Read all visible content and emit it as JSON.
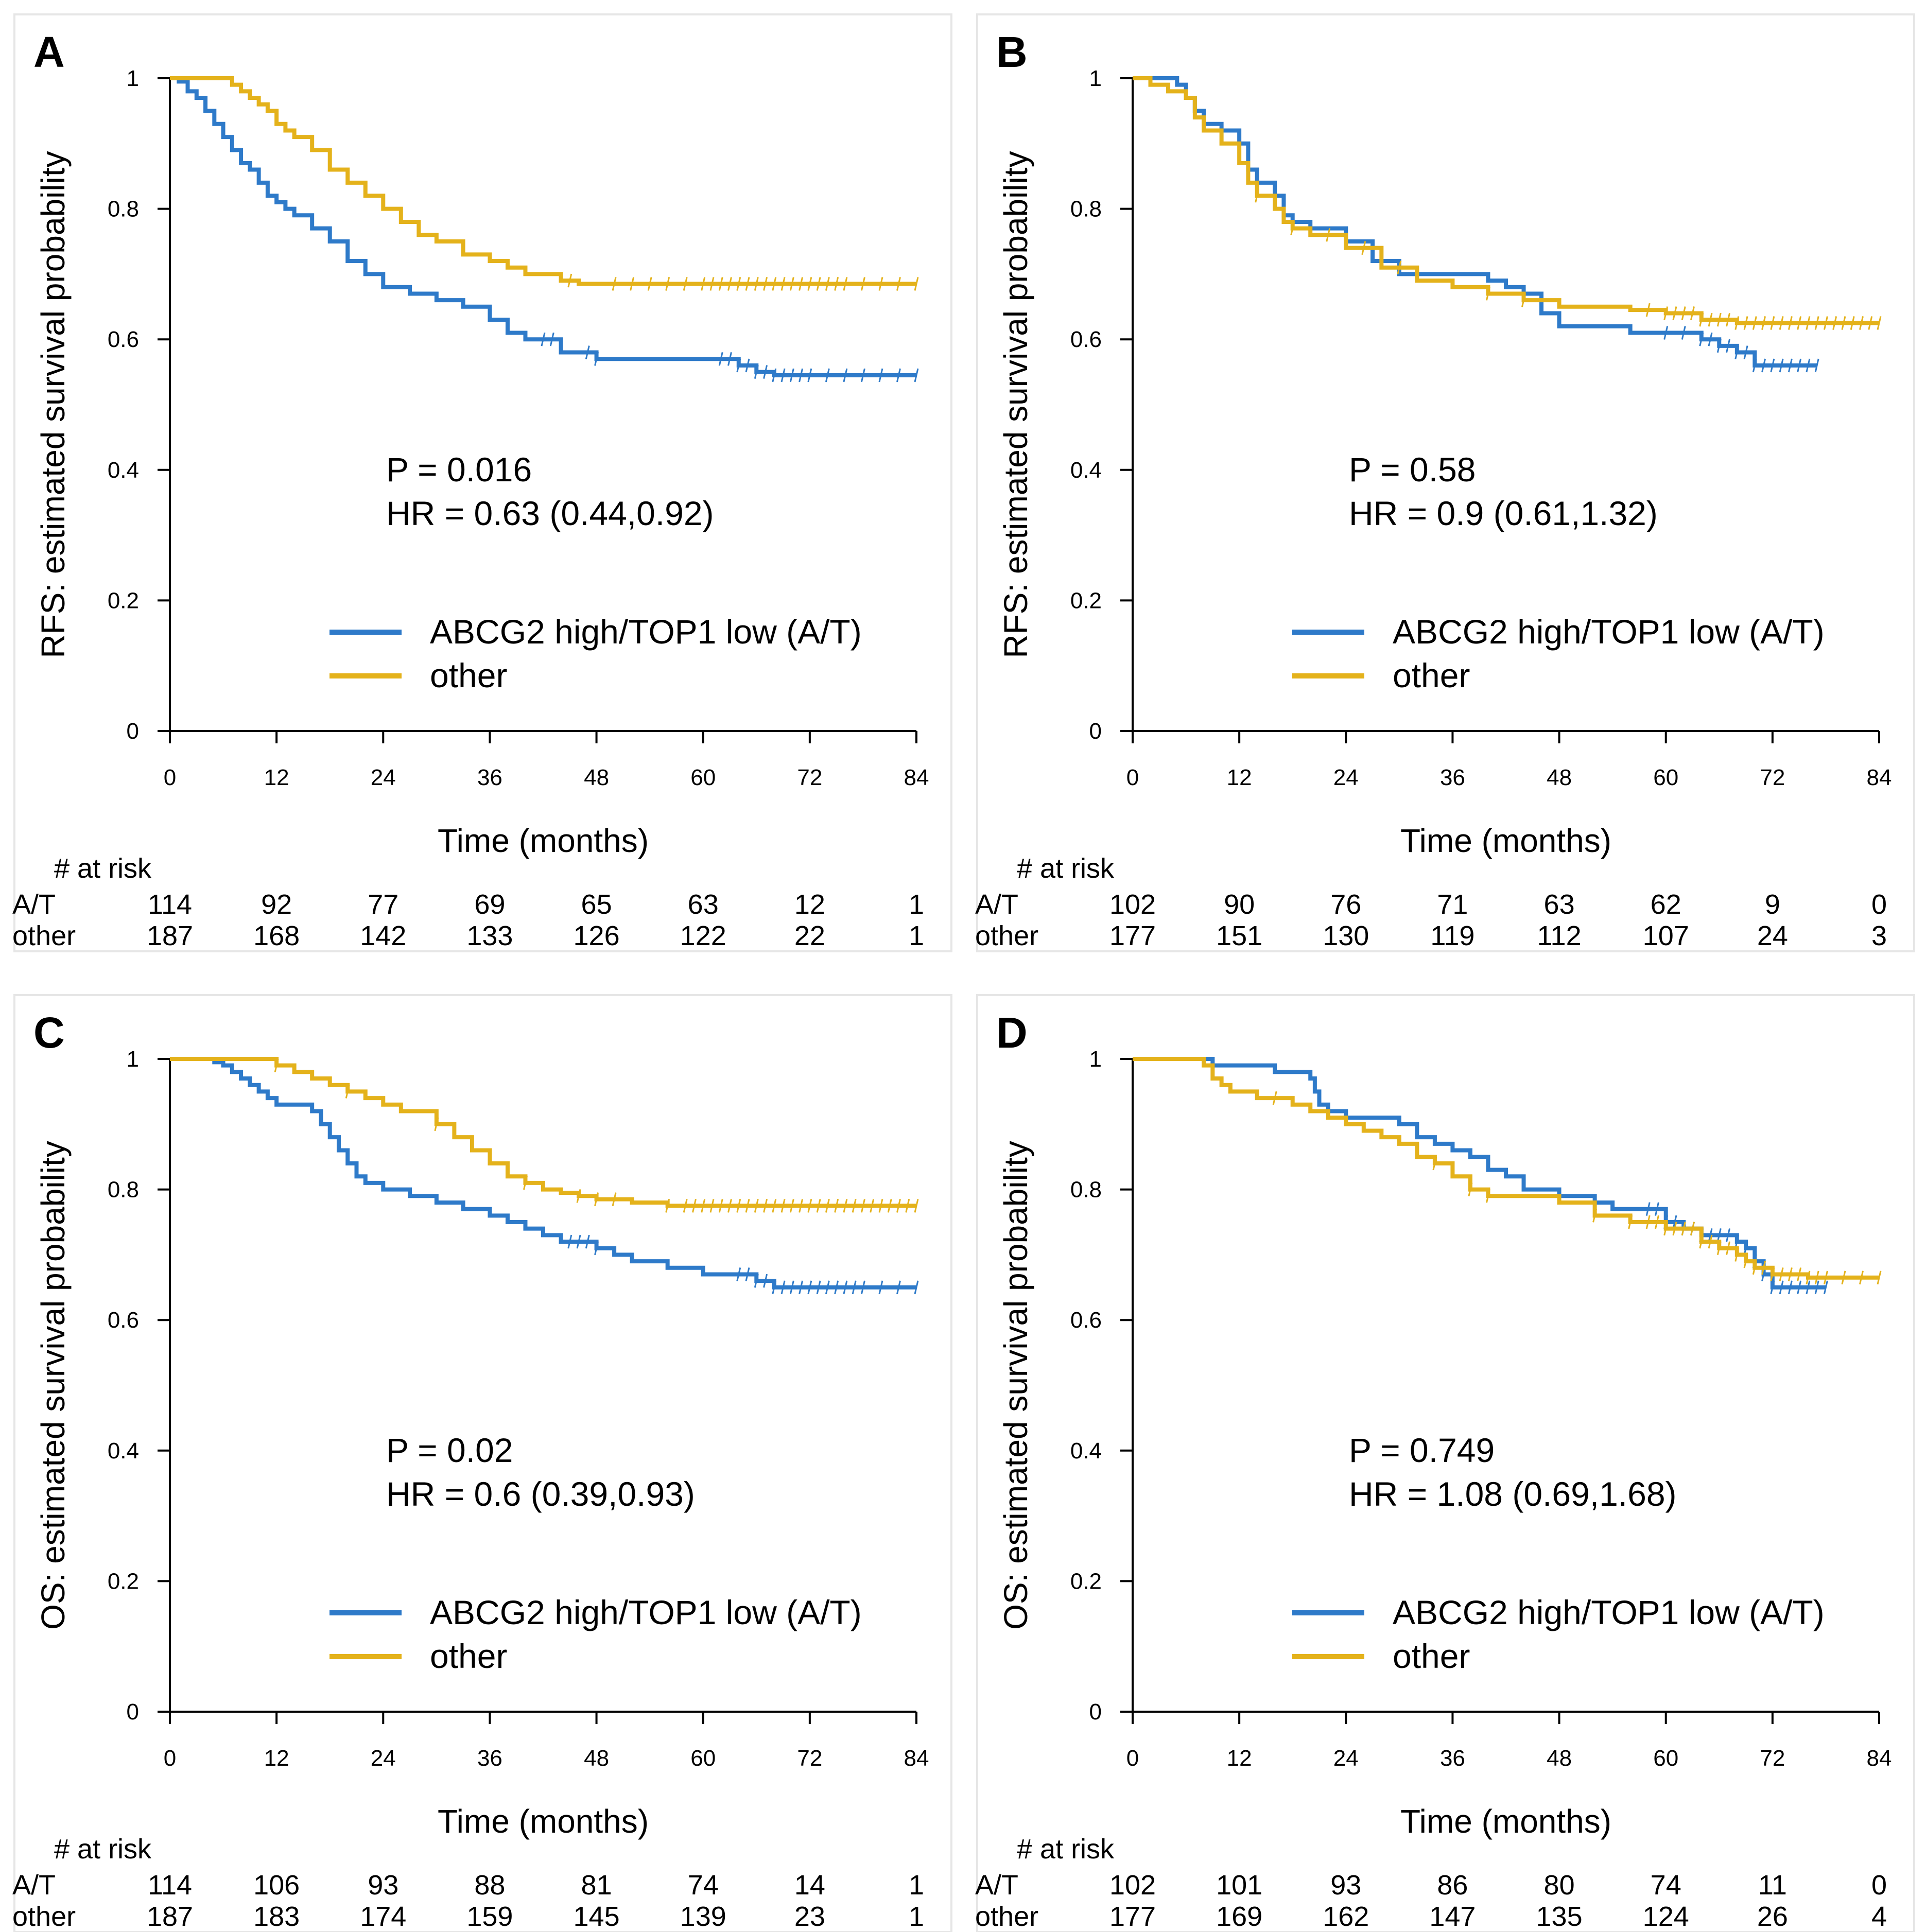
{
  "colors": {
    "at": "#2e7ac9",
    "other": "#e4b21b"
  },
  "chart_data": [
    {
      "id": "A",
      "type": "line",
      "panel_label": "A",
      "ylabel": "RFS: estimated survival probability",
      "xlabel": "Time (months)",
      "xlim": [
        0,
        84
      ],
      "ylim": [
        0,
        1
      ],
      "x_ticks": [
        "0",
        "12",
        "24",
        "36",
        "48",
        "60",
        "72",
        "84"
      ],
      "y_ticks": [
        "0",
        "0.2",
        "0.4",
        "0.6",
        "0.8",
        "1"
      ],
      "p_text": "P = 0.016",
      "hr_text": "HR = 0.63  (0.44,0.92)",
      "legend": {
        "at": "ABCG2 high/TOP1 low (A/T)",
        "other": "other"
      },
      "risk": {
        "header": "# at risk",
        "at_label": "A/T",
        "other_label": "other",
        "at": [
          "114",
          "92",
          "77",
          "69",
          "65",
          "63",
          "12",
          "1"
        ],
        "other": [
          "187",
          "168",
          "142",
          "133",
          "126",
          "122",
          "22",
          "1"
        ]
      },
      "series": [
        {
          "name": "at",
          "x": [
            0,
            1,
            2,
            3,
            4,
            5,
            6,
            7,
            8,
            9,
            10,
            11,
            12,
            13,
            14,
            16,
            18,
            20,
            22,
            24,
            27,
            30,
            33,
            36,
            38,
            40,
            44,
            48,
            52,
            56,
            60,
            64,
            66,
            68,
            72,
            76,
            80,
            84
          ],
          "y": [
            1,
            0.995,
            0.98,
            0.97,
            0.95,
            0.93,
            0.91,
            0.89,
            0.87,
            0.86,
            0.84,
            0.82,
            0.81,
            0.8,
            0.79,
            0.77,
            0.75,
            0.72,
            0.7,
            0.68,
            0.67,
            0.66,
            0.65,
            0.63,
            0.61,
            0.6,
            0.58,
            0.57,
            0.57,
            0.57,
            0.57,
            0.56,
            0.55,
            0.545,
            0.545,
            0.545,
            0.545,
            0.545
          ],
          "censor_x": [
            42,
            43,
            47,
            48,
            62,
            63,
            64,
            65,
            66,
            67,
            68,
            69,
            70,
            71,
            72,
            74,
            76,
            78,
            80,
            82,
            84
          ]
        },
        {
          "name": "other",
          "x": [
            0,
            2,
            4,
            6,
            7,
            8,
            9,
            10,
            11,
            12,
            13,
            14,
            16,
            18,
            20,
            22,
            24,
            26,
            28,
            30,
            33,
            36,
            38,
            40,
            44,
            46,
            48,
            52,
            56,
            60,
            64,
            68,
            72,
            76,
            80,
            84
          ],
          "y": [
            1,
            1,
            1,
            1,
            0.99,
            0.98,
            0.97,
            0.96,
            0.95,
            0.93,
            0.92,
            0.91,
            0.89,
            0.86,
            0.84,
            0.82,
            0.8,
            0.78,
            0.76,
            0.75,
            0.73,
            0.72,
            0.71,
            0.7,
            0.69,
            0.685,
            0.685,
            0.685,
            0.685,
            0.685,
            0.685,
            0.685,
            0.685,
            0.685,
            0.685,
            0.685
          ],
          "censor_x": [
            45,
            50,
            52,
            54,
            56,
            58,
            60,
            61,
            62,
            63,
            64,
            65,
            66,
            67,
            68,
            69,
            70,
            71,
            72,
            73,
            74,
            75,
            76,
            78,
            80,
            82,
            84
          ]
        }
      ]
    },
    {
      "id": "B",
      "type": "line",
      "panel_label": "B",
      "ylabel": "RFS: estimated survival probability",
      "xlabel": "Time (months)",
      "xlim": [
        0,
        84
      ],
      "ylim": [
        0,
        1
      ],
      "x_ticks": [
        "0",
        "12",
        "24",
        "36",
        "48",
        "60",
        "72",
        "84"
      ],
      "y_ticks": [
        "0",
        "0.2",
        "0.4",
        "0.6",
        "0.8",
        "1"
      ],
      "p_text": "P = 0.58",
      "hr_text": "HR = 0.9  (0.61,1.32)",
      "legend": {
        "at": "ABCG2 high/TOP1 low (A/T)",
        "other": "other"
      },
      "risk": {
        "header": "# at risk",
        "at_label": "A/T",
        "other_label": "other",
        "at": [
          "102",
          "90",
          "76",
          "71",
          "63",
          "62",
          "9",
          "0"
        ],
        "other": [
          "177",
          "151",
          "130",
          "119",
          "112",
          "107",
          "24",
          "3"
        ]
      },
      "series": [
        {
          "name": "at",
          "x": [
            0,
            3,
            5,
            6,
            7,
            8,
            10,
            12,
            13,
            14,
            16,
            17,
            18,
            20,
            24,
            27,
            30,
            34,
            36,
            40,
            42,
            44,
            46,
            48,
            52,
            56,
            60,
            64,
            66,
            68,
            70,
            72,
            74,
            77
          ],
          "y": [
            1,
            1,
            0.99,
            0.97,
            0.95,
            0.93,
            0.92,
            0.9,
            0.86,
            0.84,
            0.82,
            0.79,
            0.78,
            0.77,
            0.75,
            0.72,
            0.7,
            0.7,
            0.7,
            0.69,
            0.68,
            0.67,
            0.64,
            0.62,
            0.62,
            0.61,
            0.61,
            0.6,
            0.59,
            0.58,
            0.56,
            0.56,
            0.56,
            0.56
          ],
          "censor_x": [
            60,
            62,
            64,
            65,
            66,
            67,
            68,
            69,
            70,
            71,
            72,
            73,
            74,
            75,
            76,
            77
          ]
        },
        {
          "name": "other",
          "x": [
            0,
            2,
            4,
            6,
            7,
            8,
            10,
            12,
            13,
            14,
            16,
            17,
            18,
            20,
            24,
            28,
            32,
            36,
            40,
            44,
            48,
            52,
            56,
            60,
            64,
            68,
            72,
            76,
            80,
            84
          ],
          "y": [
            1,
            0.99,
            0.98,
            0.97,
            0.94,
            0.92,
            0.9,
            0.87,
            0.84,
            0.82,
            0.8,
            0.78,
            0.77,
            0.76,
            0.74,
            0.71,
            0.69,
            0.68,
            0.67,
            0.66,
            0.65,
            0.65,
            0.645,
            0.64,
            0.63,
            0.625,
            0.625,
            0.625,
            0.625,
            0.625
          ],
          "censor_x": [
            14,
            18,
            22,
            26,
            30,
            40,
            44,
            58,
            60,
            61,
            62,
            63,
            64,
            65,
            66,
            67,
            68,
            69,
            70,
            71,
            72,
            73,
            74,
            75,
            76,
            77,
            78,
            79,
            80,
            81,
            82,
            83,
            84
          ]
        }
      ]
    },
    {
      "id": "C",
      "type": "line",
      "panel_label": "C",
      "ylabel": "OS: estimated survival probability",
      "xlabel": "Time (months)",
      "xlim": [
        0,
        84
      ],
      "ylim": [
        0,
        1
      ],
      "x_ticks": [
        "0",
        "12",
        "24",
        "36",
        "48",
        "60",
        "72",
        "84"
      ],
      "y_ticks": [
        "0",
        "0.2",
        "0.4",
        "0.6",
        "0.8",
        "1"
      ],
      "p_text": "P = 0.02",
      "hr_text": "HR = 0.6  (0.39,0.93)",
      "legend": {
        "at": "ABCG2 high/TOP1 low (A/T)",
        "other": "other"
      },
      "risk": {
        "header": "# at risk",
        "at_label": "A/T",
        "other_label": "other",
        "at": [
          "114",
          "106",
          "93",
          "88",
          "81",
          "74",
          "14",
          "1"
        ],
        "other": [
          "187",
          "183",
          "174",
          "159",
          "145",
          "139",
          "23",
          "1"
        ]
      },
      "series": [
        {
          "name": "at",
          "x": [
            0,
            2,
            4,
            5,
            6,
            7,
            8,
            9,
            10,
            11,
            12,
            14,
            16,
            17,
            18,
            19,
            20,
            21,
            22,
            24,
            27,
            30,
            33,
            36,
            38,
            40,
            42,
            44,
            48,
            50,
            52,
            56,
            60,
            64,
            66,
            68,
            72,
            76,
            80,
            84
          ],
          "y": [
            1,
            1,
            1,
            0.995,
            0.99,
            0.98,
            0.97,
            0.96,
            0.95,
            0.94,
            0.93,
            0.93,
            0.92,
            0.9,
            0.88,
            0.86,
            0.84,
            0.82,
            0.81,
            0.8,
            0.79,
            0.78,
            0.77,
            0.76,
            0.75,
            0.74,
            0.73,
            0.72,
            0.71,
            0.7,
            0.69,
            0.68,
            0.67,
            0.67,
            0.66,
            0.65,
            0.65,
            0.65,
            0.65,
            0.65
          ],
          "censor_x": [
            45,
            46,
            47,
            48,
            64,
            65,
            66,
            67,
            68,
            69,
            70,
            71,
            72,
            73,
            74,
            75,
            76,
            77,
            78,
            80,
            82,
            84
          ]
        },
        {
          "name": "other",
          "x": [
            0,
            6,
            10,
            12,
            14,
            16,
            18,
            20,
            22,
            24,
            26,
            28,
            30,
            32,
            34,
            36,
            38,
            40,
            42,
            44,
            46,
            48,
            52,
            56,
            60,
            64,
            68,
            72,
            76,
            80,
            84
          ],
          "y": [
            1,
            1,
            1,
            0.99,
            0.98,
            0.97,
            0.96,
            0.95,
            0.94,
            0.93,
            0.92,
            0.92,
            0.9,
            0.88,
            0.86,
            0.84,
            0.82,
            0.81,
            0.8,
            0.795,
            0.79,
            0.785,
            0.78,
            0.775,
            0.775,
            0.775,
            0.775,
            0.775,
            0.775,
            0.775,
            0.775
          ],
          "censor_x": [
            12,
            20,
            30,
            40,
            46,
            48,
            50,
            56,
            58,
            59,
            60,
            61,
            62,
            63,
            64,
            65,
            66,
            67,
            68,
            69,
            70,
            71,
            72,
            73,
            74,
            75,
            76,
            77,
            78,
            79,
            80,
            81,
            82,
            83,
            84
          ]
        }
      ]
    },
    {
      "id": "D",
      "type": "line",
      "panel_label": "D",
      "ylabel": "OS: estimated survival probability",
      "xlabel": "Time (months)",
      "xlim": [
        0,
        84
      ],
      "ylim": [
        0,
        1
      ],
      "x_ticks": [
        "0",
        "12",
        "24",
        "36",
        "48",
        "60",
        "72",
        "84"
      ],
      "y_ticks": [
        "0",
        "0.2",
        "0.4",
        "0.6",
        "0.8",
        "1"
      ],
      "p_text": "P = 0.749",
      "hr_text": "HR = 1.08  (0.69,1.68)",
      "legend": {
        "at": "ABCG2 high/TOP1 low (A/T)",
        "other": "other"
      },
      "risk": {
        "header": "# at risk",
        "at_label": "A/T",
        "other_label": "other",
        "at": [
          "102",
          "101",
          "93",
          "86",
          "80",
          "74",
          "11",
          "0"
        ],
        "other": [
          "177",
          "169",
          "162",
          "147",
          "135",
          "124",
          "26",
          "4"
        ]
      },
      "series": [
        {
          "name": "at",
          "x": [
            0,
            6,
            9,
            12,
            16,
            18,
            20,
            20.5,
            21,
            22,
            24,
            27,
            30,
            32,
            34,
            36,
            38,
            40,
            42,
            44,
            48,
            52,
            54,
            56,
            60,
            62,
            64,
            66,
            68,
            69,
            70,
            71,
            72,
            74,
            76,
            78
          ],
          "y": [
            1,
            1,
            0.99,
            0.99,
            0.98,
            0.98,
            0.97,
            0.95,
            0.93,
            0.92,
            0.91,
            0.91,
            0.9,
            0.88,
            0.87,
            0.86,
            0.85,
            0.83,
            0.82,
            0.8,
            0.79,
            0.78,
            0.77,
            0.77,
            0.75,
            0.74,
            0.73,
            0.73,
            0.72,
            0.71,
            0.69,
            0.67,
            0.65,
            0.65,
            0.65,
            0.65
          ],
          "censor_x": [
            58,
            59,
            60,
            61,
            62,
            63,
            64,
            65,
            66,
            67,
            68,
            69,
            70,
            71,
            72,
            73,
            74,
            75,
            76,
            77,
            78
          ]
        },
        {
          "name": "other",
          "x": [
            0,
            6,
            8,
            9,
            10,
            11,
            12,
            14,
            16,
            18,
            20,
            22,
            24,
            26,
            28,
            30,
            32,
            34,
            36,
            38,
            40,
            44,
            48,
            52,
            56,
            60,
            64,
            66,
            68,
            69,
            70,
            72,
            76,
            80,
            84
          ],
          "y": [
            1,
            1,
            0.99,
            0.97,
            0.96,
            0.95,
            0.95,
            0.94,
            0.94,
            0.93,
            0.92,
            0.91,
            0.9,
            0.89,
            0.88,
            0.87,
            0.85,
            0.84,
            0.82,
            0.8,
            0.79,
            0.79,
            0.78,
            0.76,
            0.75,
            0.74,
            0.72,
            0.71,
            0.7,
            0.69,
            0.68,
            0.67,
            0.665,
            0.665,
            0.665
          ],
          "censor_x": [
            16,
            34,
            38,
            40,
            52,
            56,
            58,
            59,
            60,
            61,
            62,
            63,
            64,
            65,
            66,
            67,
            68,
            69,
            70,
            71,
            72,
            73,
            74,
            75,
            76,
            77,
            78,
            80,
            82,
            84
          ]
        }
      ]
    }
  ]
}
